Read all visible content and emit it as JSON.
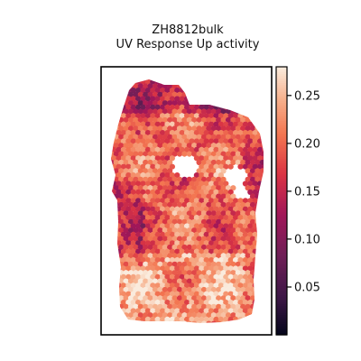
{
  "chart_data": {
    "type": "heatmap",
    "title": "ZH8812bulk",
    "subtitle": "UV Response Up activity",
    "xlabel": "",
    "ylabel": "",
    "grid": false,
    "colorbar": {
      "colormap": "rocket",
      "min": 0.0,
      "max": 0.28,
      "ticks": [
        0.05,
        0.1,
        0.15,
        0.2,
        0.25
      ],
      "tick_labels": [
        "0.05",
        "0.10",
        "0.15",
        "0.20",
        "0.25"
      ]
    },
    "value_summary": {
      "typical_range": [
        0.12,
        0.27
      ],
      "approx_median": 0.19
    }
  }
}
